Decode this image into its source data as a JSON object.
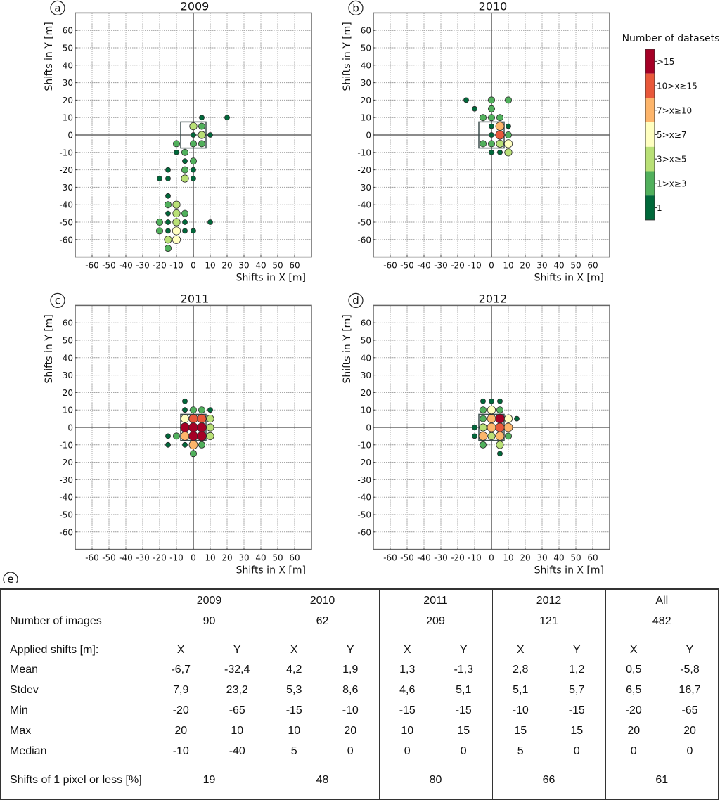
{
  "legend": {
    "title": "Number of datasets",
    "classes": [
      {
        "key": "gt15",
        "label": ">15",
        "color": "#a50026"
      },
      {
        "key": "10to15",
        "label": "10>x≥15",
        "color": "#e8583a"
      },
      {
        "key": "7to10",
        "label": "7>x≥10",
        "color": "#fdb56b"
      },
      {
        "key": "5to7",
        "label": "5>x≥7",
        "color": "#ffffc0"
      },
      {
        "key": "3to5",
        "label": "3>x≥5",
        "color": "#b9e076"
      },
      {
        "key": "1to3",
        "label": "1>x≥3",
        "color": "#51b05c"
      },
      {
        "key": "1",
        "label": "1",
        "color": "#00683a"
      }
    ]
  },
  "chart_data": [
    {
      "type": "scatter",
      "panel": "a",
      "title": "2009",
      "xlabel": "Shifts in X [m]",
      "ylabel": "Shifts in Y [m]",
      "xlim": [
        -70,
        70
      ],
      "ylim": [
        -70,
        70
      ],
      "xticks": [
        -60,
        -50,
        -40,
        -30,
        -20,
        -10,
        0,
        10,
        20,
        30,
        40,
        50,
        60
      ],
      "yticks": [
        60,
        50,
        40,
        30,
        20,
        10,
        0,
        -10,
        -20,
        -30,
        -40,
        -50,
        -60
      ],
      "grid": true,
      "box": [
        -7.5,
        7.5
      ],
      "points": [
        {
          "x": 5,
          "y": 10,
          "c": "1"
        },
        {
          "x": 20,
          "y": 10,
          "c": "1"
        },
        {
          "x": 0,
          "y": 5,
          "c": "3to5"
        },
        {
          "x": 5,
          "y": 5,
          "c": "1to3"
        },
        {
          "x": 0,
          "y": 0,
          "c": "1"
        },
        {
          "x": 5,
          "y": 0,
          "c": "3to5"
        },
        {
          "x": 10,
          "y": 0,
          "c": "1"
        },
        {
          "x": -10,
          "y": -5,
          "c": "1to3"
        },
        {
          "x": 0,
          "y": -5,
          "c": "1to3"
        },
        {
          "x": 5,
          "y": -5,
          "c": "1to3"
        },
        {
          "x": -10,
          "y": -10,
          "c": "1"
        },
        {
          "x": -5,
          "y": -10,
          "c": "1to3"
        },
        {
          "x": -5,
          "y": -15,
          "c": "1"
        },
        {
          "x": 0,
          "y": -15,
          "c": "1to3"
        },
        {
          "x": -15,
          "y": -20,
          "c": "1"
        },
        {
          "x": -5,
          "y": -20,
          "c": "1to3"
        },
        {
          "x": 0,
          "y": -20,
          "c": "1"
        },
        {
          "x": -20,
          "y": -25,
          "c": "1"
        },
        {
          "x": -15,
          "y": -25,
          "c": "1"
        },
        {
          "x": -5,
          "y": -25,
          "c": "3to5"
        },
        {
          "x": 0,
          "y": -25,
          "c": "1"
        },
        {
          "x": -15,
          "y": -35,
          "c": "1"
        },
        {
          "x": -15,
          "y": -40,
          "c": "1to3"
        },
        {
          "x": -10,
          "y": -40,
          "c": "3to5"
        },
        {
          "x": -15,
          "y": -45,
          "c": "1"
        },
        {
          "x": -10,
          "y": -45,
          "c": "3to5"
        },
        {
          "x": -5,
          "y": -45,
          "c": "1to3"
        },
        {
          "x": -20,
          "y": -50,
          "c": "1to3"
        },
        {
          "x": -15,
          "y": -50,
          "c": "1"
        },
        {
          "x": -10,
          "y": -50,
          "c": "3to5"
        },
        {
          "x": -5,
          "y": -50,
          "c": "1"
        },
        {
          "x": 10,
          "y": -50,
          "c": "1"
        },
        {
          "x": -20,
          "y": -55,
          "c": "1to3"
        },
        {
          "x": -15,
          "y": -55,
          "c": "1"
        },
        {
          "x": -10,
          "y": -55,
          "c": "5to7"
        },
        {
          "x": -5,
          "y": -55,
          "c": "1"
        },
        {
          "x": 0,
          "y": -55,
          "c": "1"
        },
        {
          "x": -15,
          "y": -60,
          "c": "3to5"
        },
        {
          "x": -10,
          "y": -60,
          "c": "5to7"
        },
        {
          "x": -15,
          "y": -65,
          "c": "1to3"
        }
      ]
    },
    {
      "type": "scatter",
      "panel": "b",
      "title": "2010",
      "xlabel": "Shifts in X [m]",
      "ylabel": "Shifts in Y [m]",
      "xlim": [
        -70,
        70
      ],
      "ylim": [
        -70,
        70
      ],
      "xticks": [
        -60,
        -50,
        -40,
        -30,
        -20,
        -10,
        0,
        10,
        20,
        30,
        40,
        50,
        60
      ],
      "yticks": [
        60,
        50,
        40,
        30,
        20,
        10,
        0,
        -10,
        -20,
        -30,
        -40,
        -50,
        -60
      ],
      "grid": true,
      "box": [
        -7.5,
        7.5
      ],
      "points": [
        {
          "x": -15,
          "y": 20,
          "c": "1"
        },
        {
          "x": 0,
          "y": 20,
          "c": "1to3"
        },
        {
          "x": 10,
          "y": 20,
          "c": "1to3"
        },
        {
          "x": -10,
          "y": 15,
          "c": "1"
        },
        {
          "x": 0,
          "y": 15,
          "c": "1to3"
        },
        {
          "x": -5,
          "y": 10,
          "c": "1to3"
        },
        {
          "x": 0,
          "y": 10,
          "c": "1to3"
        },
        {
          "x": 5,
          "y": 10,
          "c": "1to3"
        },
        {
          "x": 0,
          "y": 5,
          "c": "1"
        },
        {
          "x": 5,
          "y": 5,
          "c": "7to10"
        },
        {
          "x": 10,
          "y": 5,
          "c": "1"
        },
        {
          "x": 0,
          "y": 0,
          "c": "1"
        },
        {
          "x": 5,
          "y": 0,
          "c": "10to15"
        },
        {
          "x": 10,
          "y": 0,
          "c": "1to3"
        },
        {
          "x": -5,
          "y": -5,
          "c": "1to3"
        },
        {
          "x": 0,
          "y": -5,
          "c": "1to3"
        },
        {
          "x": 5,
          "y": -5,
          "c": "3to5"
        },
        {
          "x": 10,
          "y": -5,
          "c": "5to7"
        },
        {
          "x": 0,
          "y": -10,
          "c": "1"
        },
        {
          "x": 5,
          "y": -10,
          "c": "1"
        },
        {
          "x": 10,
          "y": -10,
          "c": "3to5"
        }
      ]
    },
    {
      "type": "scatter",
      "panel": "c",
      "title": "2011",
      "xlabel": "Shifts in X [m]",
      "ylabel": "Shifts in Y [m]",
      "xlim": [
        -70,
        70
      ],
      "ylim": [
        -70,
        70
      ],
      "xticks": [
        -60,
        -50,
        -40,
        -30,
        -20,
        -10,
        0,
        10,
        20,
        30,
        40,
        50,
        60
      ],
      "yticks": [
        60,
        50,
        40,
        30,
        20,
        10,
        0,
        -10,
        -20,
        -30,
        -40,
        -50,
        -60
      ],
      "grid": true,
      "box": [
        -7.5,
        7.5
      ],
      "points": [
        {
          "x": -5,
          "y": 15,
          "c": "1"
        },
        {
          "x": -5,
          "y": 10,
          "c": "1"
        },
        {
          "x": 0,
          "y": 10,
          "c": "1to3"
        },
        {
          "x": 5,
          "y": 10,
          "c": "1to3"
        },
        {
          "x": 10,
          "y": 10,
          "c": "1"
        },
        {
          "x": -5,
          "y": 5,
          "c": "5to7"
        },
        {
          "x": 0,
          "y": 5,
          "c": "10to15"
        },
        {
          "x": 5,
          "y": 5,
          "c": "10to15"
        },
        {
          "x": 10,
          "y": 5,
          "c": "3to5"
        },
        {
          "x": -5,
          "y": 0,
          "c": "gt15"
        },
        {
          "x": 0,
          "y": 0,
          "c": "gt15"
        },
        {
          "x": 5,
          "y": 0,
          "c": "gt15"
        },
        {
          "x": 10,
          "y": 0,
          "c": "3to5"
        },
        {
          "x": -15,
          "y": -5,
          "c": "1"
        },
        {
          "x": -10,
          "y": -5,
          "c": "1to3"
        },
        {
          "x": -5,
          "y": -5,
          "c": "7to10"
        },
        {
          "x": 0,
          "y": -5,
          "c": "gt15"
        },
        {
          "x": 5,
          "y": -5,
          "c": "gt15"
        },
        {
          "x": 10,
          "y": -5,
          "c": "3to5"
        },
        {
          "x": -15,
          "y": -10,
          "c": "1"
        },
        {
          "x": -5,
          "y": -10,
          "c": "1"
        },
        {
          "x": 0,
          "y": -10,
          "c": "7to10"
        },
        {
          "x": 5,
          "y": -10,
          "c": "1to3"
        },
        {
          "x": 0,
          "y": -15,
          "c": "1to3"
        }
      ]
    },
    {
      "type": "scatter",
      "panel": "d",
      "title": "2012",
      "xlabel": "Shifts in X [m]",
      "ylabel": "Shifts in Y [m]",
      "xlim": [
        -70,
        70
      ],
      "ylim": [
        -70,
        70
      ],
      "xticks": [
        -60,
        -50,
        -40,
        -30,
        -20,
        -10,
        0,
        10,
        20,
        30,
        40,
        50,
        60
      ],
      "yticks": [
        60,
        50,
        40,
        30,
        20,
        10,
        0,
        -10,
        -20,
        -30,
        -40,
        -50,
        -60
      ],
      "grid": true,
      "box": [
        -7.5,
        7.5
      ],
      "points": [
        {
          "x": -5,
          "y": 15,
          "c": "1"
        },
        {
          "x": 0,
          "y": 15,
          "c": "1"
        },
        {
          "x": 5,
          "y": 15,
          "c": "1"
        },
        {
          "x": -5,
          "y": 10,
          "c": "1to3"
        },
        {
          "x": 0,
          "y": 10,
          "c": "5to7"
        },
        {
          "x": 5,
          "y": 10,
          "c": "1to3"
        },
        {
          "x": -5,
          "y": 5,
          "c": "1to3"
        },
        {
          "x": 0,
          "y": 5,
          "c": "7to10"
        },
        {
          "x": 5,
          "y": 5,
          "c": "gt15"
        },
        {
          "x": 10,
          "y": 5,
          "c": "5to7"
        },
        {
          "x": 15,
          "y": 5,
          "c": "1"
        },
        {
          "x": -10,
          "y": 0,
          "c": "1"
        },
        {
          "x": -5,
          "y": 0,
          "c": "3to5"
        },
        {
          "x": 0,
          "y": 0,
          "c": "7to10"
        },
        {
          "x": 5,
          "y": 0,
          "c": "10to15"
        },
        {
          "x": 10,
          "y": 0,
          "c": "7to10"
        },
        {
          "x": -10,
          "y": -5,
          "c": "1"
        },
        {
          "x": -5,
          "y": -5,
          "c": "7to10"
        },
        {
          "x": 0,
          "y": -5,
          "c": "3to5"
        },
        {
          "x": 5,
          "y": -5,
          "c": "7to10"
        },
        {
          "x": 10,
          "y": -5,
          "c": "1to3"
        },
        {
          "x": -5,
          "y": -10,
          "c": "1to3"
        },
        {
          "x": 5,
          "y": -10,
          "c": "3to5"
        },
        {
          "x": 5,
          "y": -15,
          "c": "1"
        }
      ]
    }
  ],
  "table": {
    "panel": "e",
    "columns": [
      "2009",
      "2010",
      "2011",
      "2012",
      "All"
    ],
    "number_of_images_label": "Number of images",
    "number_of_images": [
      "90",
      "62",
      "209",
      "121",
      "482"
    ],
    "applied_shifts_label": "Applied shifts [m]:",
    "x_label": "X",
    "y_label": "Y",
    "rows": [
      {
        "label": "Mean",
        "values": [
          [
            "-6,7",
            "-32,4"
          ],
          [
            "4,2",
            "1,9"
          ],
          [
            "1,3",
            "-1,3"
          ],
          [
            "2,8",
            "1,2"
          ],
          [
            "0,5",
            "-5,8"
          ]
        ]
      },
      {
        "label": "Stdev",
        "values": [
          [
            "7,9",
            "23,2"
          ],
          [
            "5,3",
            "8,6"
          ],
          [
            "4,6",
            "5,1"
          ],
          [
            "5,1",
            "5,7"
          ],
          [
            "6,5",
            "16,7"
          ]
        ]
      },
      {
        "label": "Min",
        "values": [
          [
            "-20",
            "-65"
          ],
          [
            "-15",
            "-10"
          ],
          [
            "-15",
            "-15"
          ],
          [
            "-10",
            "-15"
          ],
          [
            "-20",
            "-65"
          ]
        ]
      },
      {
        "label": "Max",
        "values": [
          [
            "20",
            "10"
          ],
          [
            "10",
            "20"
          ],
          [
            "10",
            "15"
          ],
          [
            "15",
            "15"
          ],
          [
            "20",
            "20"
          ]
        ]
      },
      {
        "label": "Median",
        "values": [
          [
            "-10",
            "-40"
          ],
          [
            "5",
            "0"
          ],
          [
            "0",
            "0"
          ],
          [
            "5",
            "0"
          ],
          [
            "0",
            "0"
          ]
        ]
      }
    ],
    "one_pixel_label": "Shifts of 1 pixel or less [%]",
    "one_pixel": [
      "19",
      "48",
      "80",
      "66",
      "61"
    ]
  }
}
